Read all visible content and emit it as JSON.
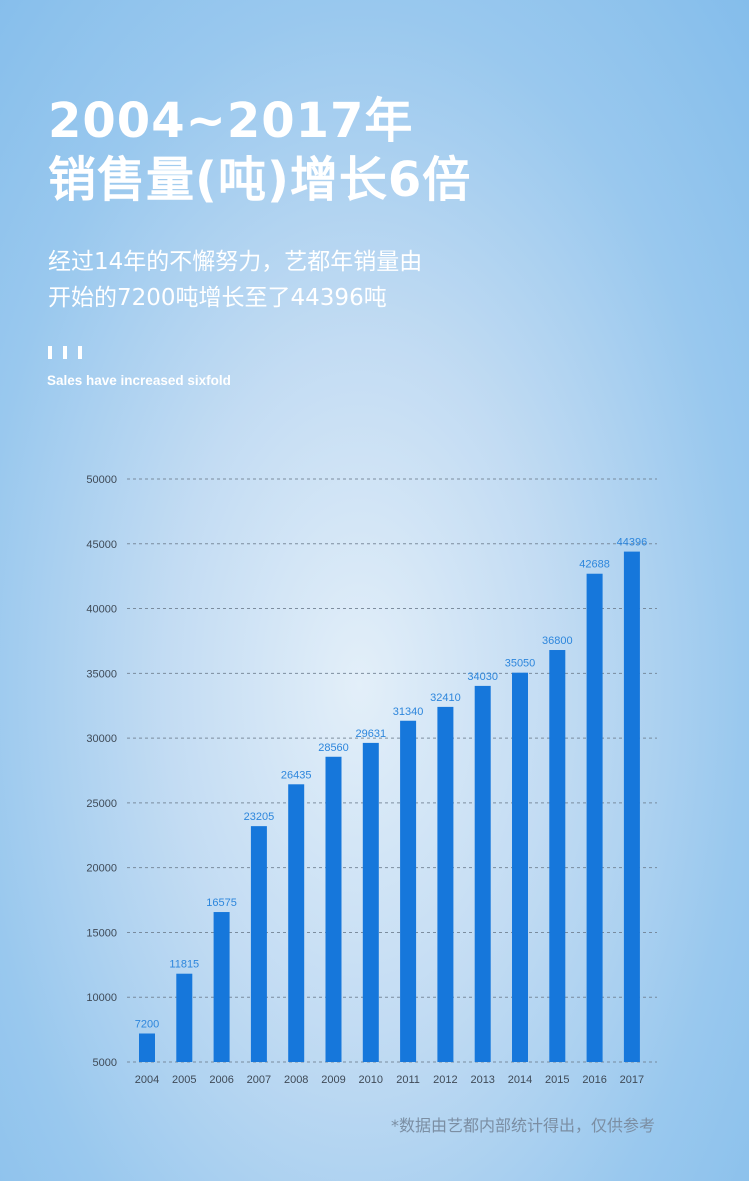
{
  "header": {
    "title_line1": "2004~2017年",
    "title_line2": "销售量(吨)增长6倍",
    "subtitle_line1": "经过14年的不懈努力，艺都年销量由",
    "subtitle_line2": "开始的7200吨增长至了44396吨",
    "tagline": "Sales have increased sixfold"
  },
  "footnote": "*数据由艺都内部统计得出，仅供参考",
  "chart_data": {
    "type": "bar",
    "categories": [
      "2004",
      "2005",
      "2006",
      "2007",
      "2008",
      "2009",
      "2010",
      "2011",
      "2012",
      "2013",
      "2014",
      "2015",
      "2016",
      "2017"
    ],
    "values": [
      7200,
      11815,
      16575,
      23205,
      26435,
      28560,
      29631,
      31340,
      32410,
      34030,
      35050,
      36800,
      42688,
      44396
    ],
    "value_labels": [
      "7200",
      "11815",
      "16575",
      "23205",
      "26435",
      "28560",
      "29631",
      "31340",
      "32410",
      "34030",
      "35050",
      "36800",
      "42688",
      "44396"
    ],
    "title": "",
    "xlabel": "",
    "ylabel": "",
    "ylim": [
      5000,
      50000
    ],
    "yticks": [
      5000,
      10000,
      15000,
      20000,
      25000,
      30000,
      35000,
      40000,
      45000,
      50000
    ],
    "grid": "dashed horizontal",
    "legend": "none",
    "colors": {
      "bar": "#1677db",
      "value_label": "#2d86dc",
      "tick": "#3f4a57",
      "grid": "#6f7f90"
    }
  }
}
